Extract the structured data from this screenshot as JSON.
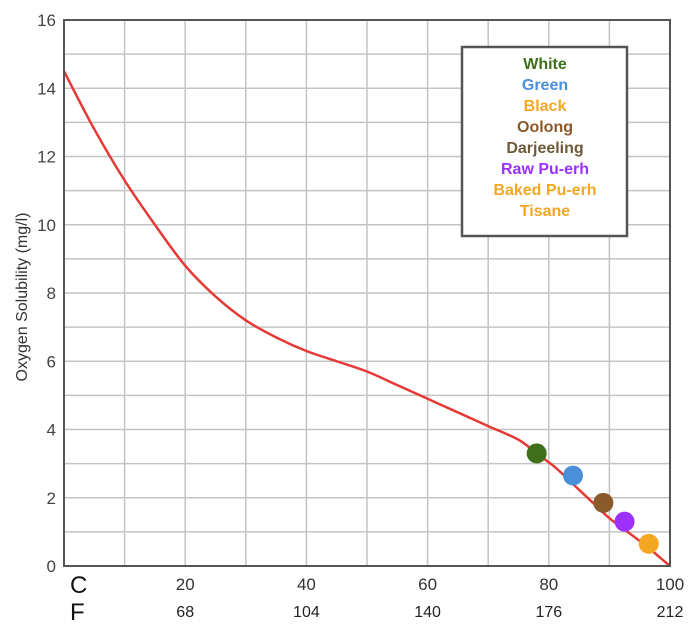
{
  "chart_data": {
    "type": "line",
    "title": "",
    "ylabel": "Oxygen Solubility (mg/l)",
    "xlim": [
      0,
      100
    ],
    "ylim": [
      0,
      16
    ],
    "grid": true,
    "x_unit_celsius": "C",
    "x_unit_fahrenheit": "F",
    "x_ticks_celsius": [
      20,
      40,
      60,
      80,
      100
    ],
    "x_ticks_fahrenheit": [
      {
        "c": 20,
        "label": "68"
      },
      {
        "c": 40,
        "label": "104"
      },
      {
        "c": 60,
        "label": "140"
      },
      {
        "c": 80,
        "label": "176"
      },
      {
        "c": 100,
        "label": "212"
      }
    ],
    "y_ticks": [
      0,
      2,
      4,
      6,
      8,
      10,
      12,
      14,
      16
    ],
    "curve": {
      "color": "#e53935",
      "x": [
        0,
        5,
        10,
        15,
        20,
        25,
        30,
        35,
        40,
        45,
        50,
        55,
        60,
        65,
        70,
        75,
        78,
        81,
        84,
        87,
        90,
        93,
        96,
        98,
        100
      ],
      "y": [
        14.5,
        12.8,
        11.3,
        10.0,
        8.8,
        7.9,
        7.2,
        6.7,
        6.3,
        6.0,
        5.7,
        5.3,
        4.9,
        4.5,
        4.1,
        3.7,
        3.3,
        2.9,
        2.4,
        1.9,
        1.4,
        1.0,
        0.6,
        0.3,
        0.0
      ]
    },
    "points": [
      {
        "name": "White",
        "x": 78,
        "y": 3.3,
        "color": "#3f6f1a"
      },
      {
        "name": "Green",
        "x": 84,
        "y": 2.65,
        "color": "#4a90d9"
      },
      {
        "name": "Oolong",
        "x": 89,
        "y": 1.85,
        "color": "#8b5a2b"
      },
      {
        "name": "Raw Pu-erh",
        "x": 92.5,
        "y": 1.3,
        "color": "#9b30ff"
      },
      {
        "name": "Baked Pu-erh",
        "x": 96.5,
        "y": 0.65,
        "color": "#f5a623"
      }
    ],
    "legend": {
      "placement": "top-right",
      "entries": [
        {
          "label": "White",
          "color": "#3f6f1a"
        },
        {
          "label": "Green",
          "color": "#4a90d9"
        },
        {
          "label": "Black",
          "color": "#f5a623"
        },
        {
          "label": "Oolong",
          "color": "#8b5a2b"
        },
        {
          "label": "Darjeeling",
          "color": "#6e5a3a"
        },
        {
          "label": "Raw Pu-erh",
          "color": "#9b30ff"
        },
        {
          "label": "Baked Pu-erh",
          "color": "#f5a623"
        },
        {
          "label": "Tisane",
          "color": "#f5a623"
        }
      ]
    }
  }
}
